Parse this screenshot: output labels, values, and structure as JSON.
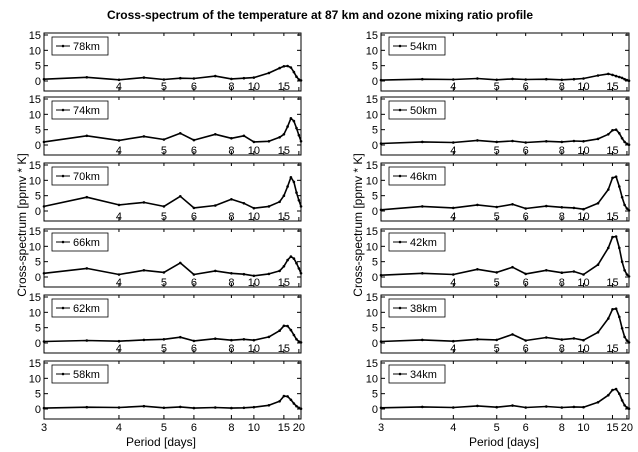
{
  "figure": {
    "title": "Cross-spectrum of the temperature at 87 km and ozone mixing ratio profile",
    "left_ylabel": "Cross-spectrum [ppmv * K]",
    "right_ylabel": "Cross-spectrum [ppmv * K]",
    "left_xlabel": "Period [days]",
    "right_xlabel": "Period [days]"
  },
  "chart_data": {
    "type": "line",
    "title": "Cross-spectrum of the temperature at 87 km and ozone mixing ratio profile",
    "xlabel": "Period [days]",
    "ylabel": "Cross-spectrum [ppmv * K]",
    "x_scale": "reciprocal (frequency-linear)",
    "xlim": [
      3,
      21
    ],
    "x_ticks": [
      3,
      4,
      5,
      6,
      8,
      10,
      15,
      20
    ],
    "ylim": [
      0,
      15
    ],
    "y_ticks": [
      0,
      5,
      10,
      15
    ],
    "legend_placement": "top-left",
    "line_style": "black line with dot markers",
    "x": [
      3.0,
      3.5,
      4.0,
      4.5,
      5.0,
      5.5,
      6.0,
      7.0,
      8.0,
      9.0,
      10.0,
      12.0,
      14.0,
      15.0,
      16.0,
      17.0,
      18.0,
      19.0,
      20.0,
      21.0
    ],
    "panels": [
      {
        "column": "left",
        "label": "78km",
        "y": [
          0.6,
          1.2,
          0.4,
          1.1,
          0.5,
          0.9,
          0.8,
          1.6,
          0.7,
          0.9,
          1.1,
          2.6,
          4.2,
          4.8,
          4.9,
          4.4,
          2.9,
          1.4,
          0.5,
          0.2
        ]
      },
      {
        "column": "left",
        "label": "74km",
        "y": [
          1.0,
          3.0,
          1.5,
          2.8,
          1.8,
          3.8,
          1.6,
          3.5,
          2.2,
          3.0,
          1.0,
          1.2,
          2.5,
          3.5,
          6.0,
          8.7,
          7.8,
          5.5,
          3.2,
          1.2
        ]
      },
      {
        "column": "left",
        "label": "70km",
        "y": [
          1.5,
          4.5,
          2.0,
          2.8,
          1.5,
          4.8,
          1.0,
          1.8,
          3.8,
          2.5,
          0.9,
          1.5,
          3.0,
          5.0,
          8.0,
          11.0,
          9.5,
          6.0,
          3.5,
          1.5
        ]
      },
      {
        "column": "left",
        "label": "66km",
        "y": [
          1.2,
          2.8,
          0.8,
          2.2,
          1.5,
          4.6,
          0.8,
          2.0,
          1.2,
          0.9,
          0.4,
          1.0,
          2.0,
          3.5,
          5.5,
          6.7,
          6.0,
          4.5,
          2.8,
          1.2
        ]
      },
      {
        "column": "left",
        "label": "62km",
        "y": [
          0.5,
          0.8,
          0.6,
          1.0,
          1.2,
          1.9,
          0.7,
          1.4,
          0.9,
          1.2,
          0.9,
          2.0,
          4.0,
          5.6,
          5.5,
          4.2,
          2.6,
          1.2,
          0.5,
          0.2
        ]
      },
      {
        "column": "left",
        "label": "58km",
        "y": [
          0.3,
          0.6,
          0.5,
          0.9,
          0.4,
          0.7,
          0.3,
          0.5,
          0.3,
          0.4,
          0.6,
          1.2,
          2.5,
          4.2,
          4.1,
          3.0,
          1.8,
          0.9,
          0.4,
          0.1
        ]
      },
      {
        "column": "right",
        "label": "54km",
        "y": [
          0.3,
          0.6,
          0.5,
          0.8,
          0.4,
          0.7,
          0.5,
          0.6,
          0.4,
          0.6,
          0.8,
          1.8,
          2.3,
          2.0,
          1.6,
          1.3,
          1.0,
          0.6,
          0.3,
          0.1
        ]
      },
      {
        "column": "right",
        "label": "50km",
        "y": [
          0.5,
          1.0,
          0.8,
          1.5,
          1.0,
          1.3,
          0.8,
          1.2,
          1.0,
          1.3,
          1.2,
          2.0,
          3.5,
          4.8,
          5.0,
          3.8,
          2.2,
          1.0,
          0.4,
          0.1
        ]
      },
      {
        "column": "right",
        "label": "46km",
        "y": [
          0.4,
          1.5,
          1.0,
          2.0,
          1.3,
          2.2,
          0.8,
          1.6,
          1.2,
          1.0,
          0.6,
          2.5,
          7.0,
          10.8,
          11.2,
          8.0,
          4.5,
          2.0,
          0.8,
          0.2
        ]
      },
      {
        "column": "right",
        "label": "42km",
        "y": [
          0.6,
          1.2,
          0.8,
          2.5,
          1.5,
          3.2,
          1.0,
          2.2,
          1.4,
          1.8,
          0.8,
          4.0,
          9.5,
          13.0,
          13.2,
          9.5,
          5.0,
          2.2,
          0.8,
          0.2
        ]
      },
      {
        "column": "right",
        "label": "38km",
        "y": [
          0.5,
          1.0,
          0.6,
          1.2,
          1.0,
          2.8,
          0.8,
          1.8,
          1.1,
          1.5,
          0.9,
          3.5,
          8.0,
          11.0,
          11.2,
          8.5,
          4.8,
          2.0,
          0.8,
          0.2
        ]
      },
      {
        "column": "right",
        "label": "34km",
        "y": [
          0.4,
          0.7,
          0.5,
          1.0,
          0.6,
          1.1,
          0.5,
          0.8,
          0.5,
          0.7,
          0.6,
          2.2,
          4.5,
          6.2,
          6.5,
          5.0,
          2.8,
          1.2,
          0.5,
          0.1
        ]
      }
    ]
  }
}
